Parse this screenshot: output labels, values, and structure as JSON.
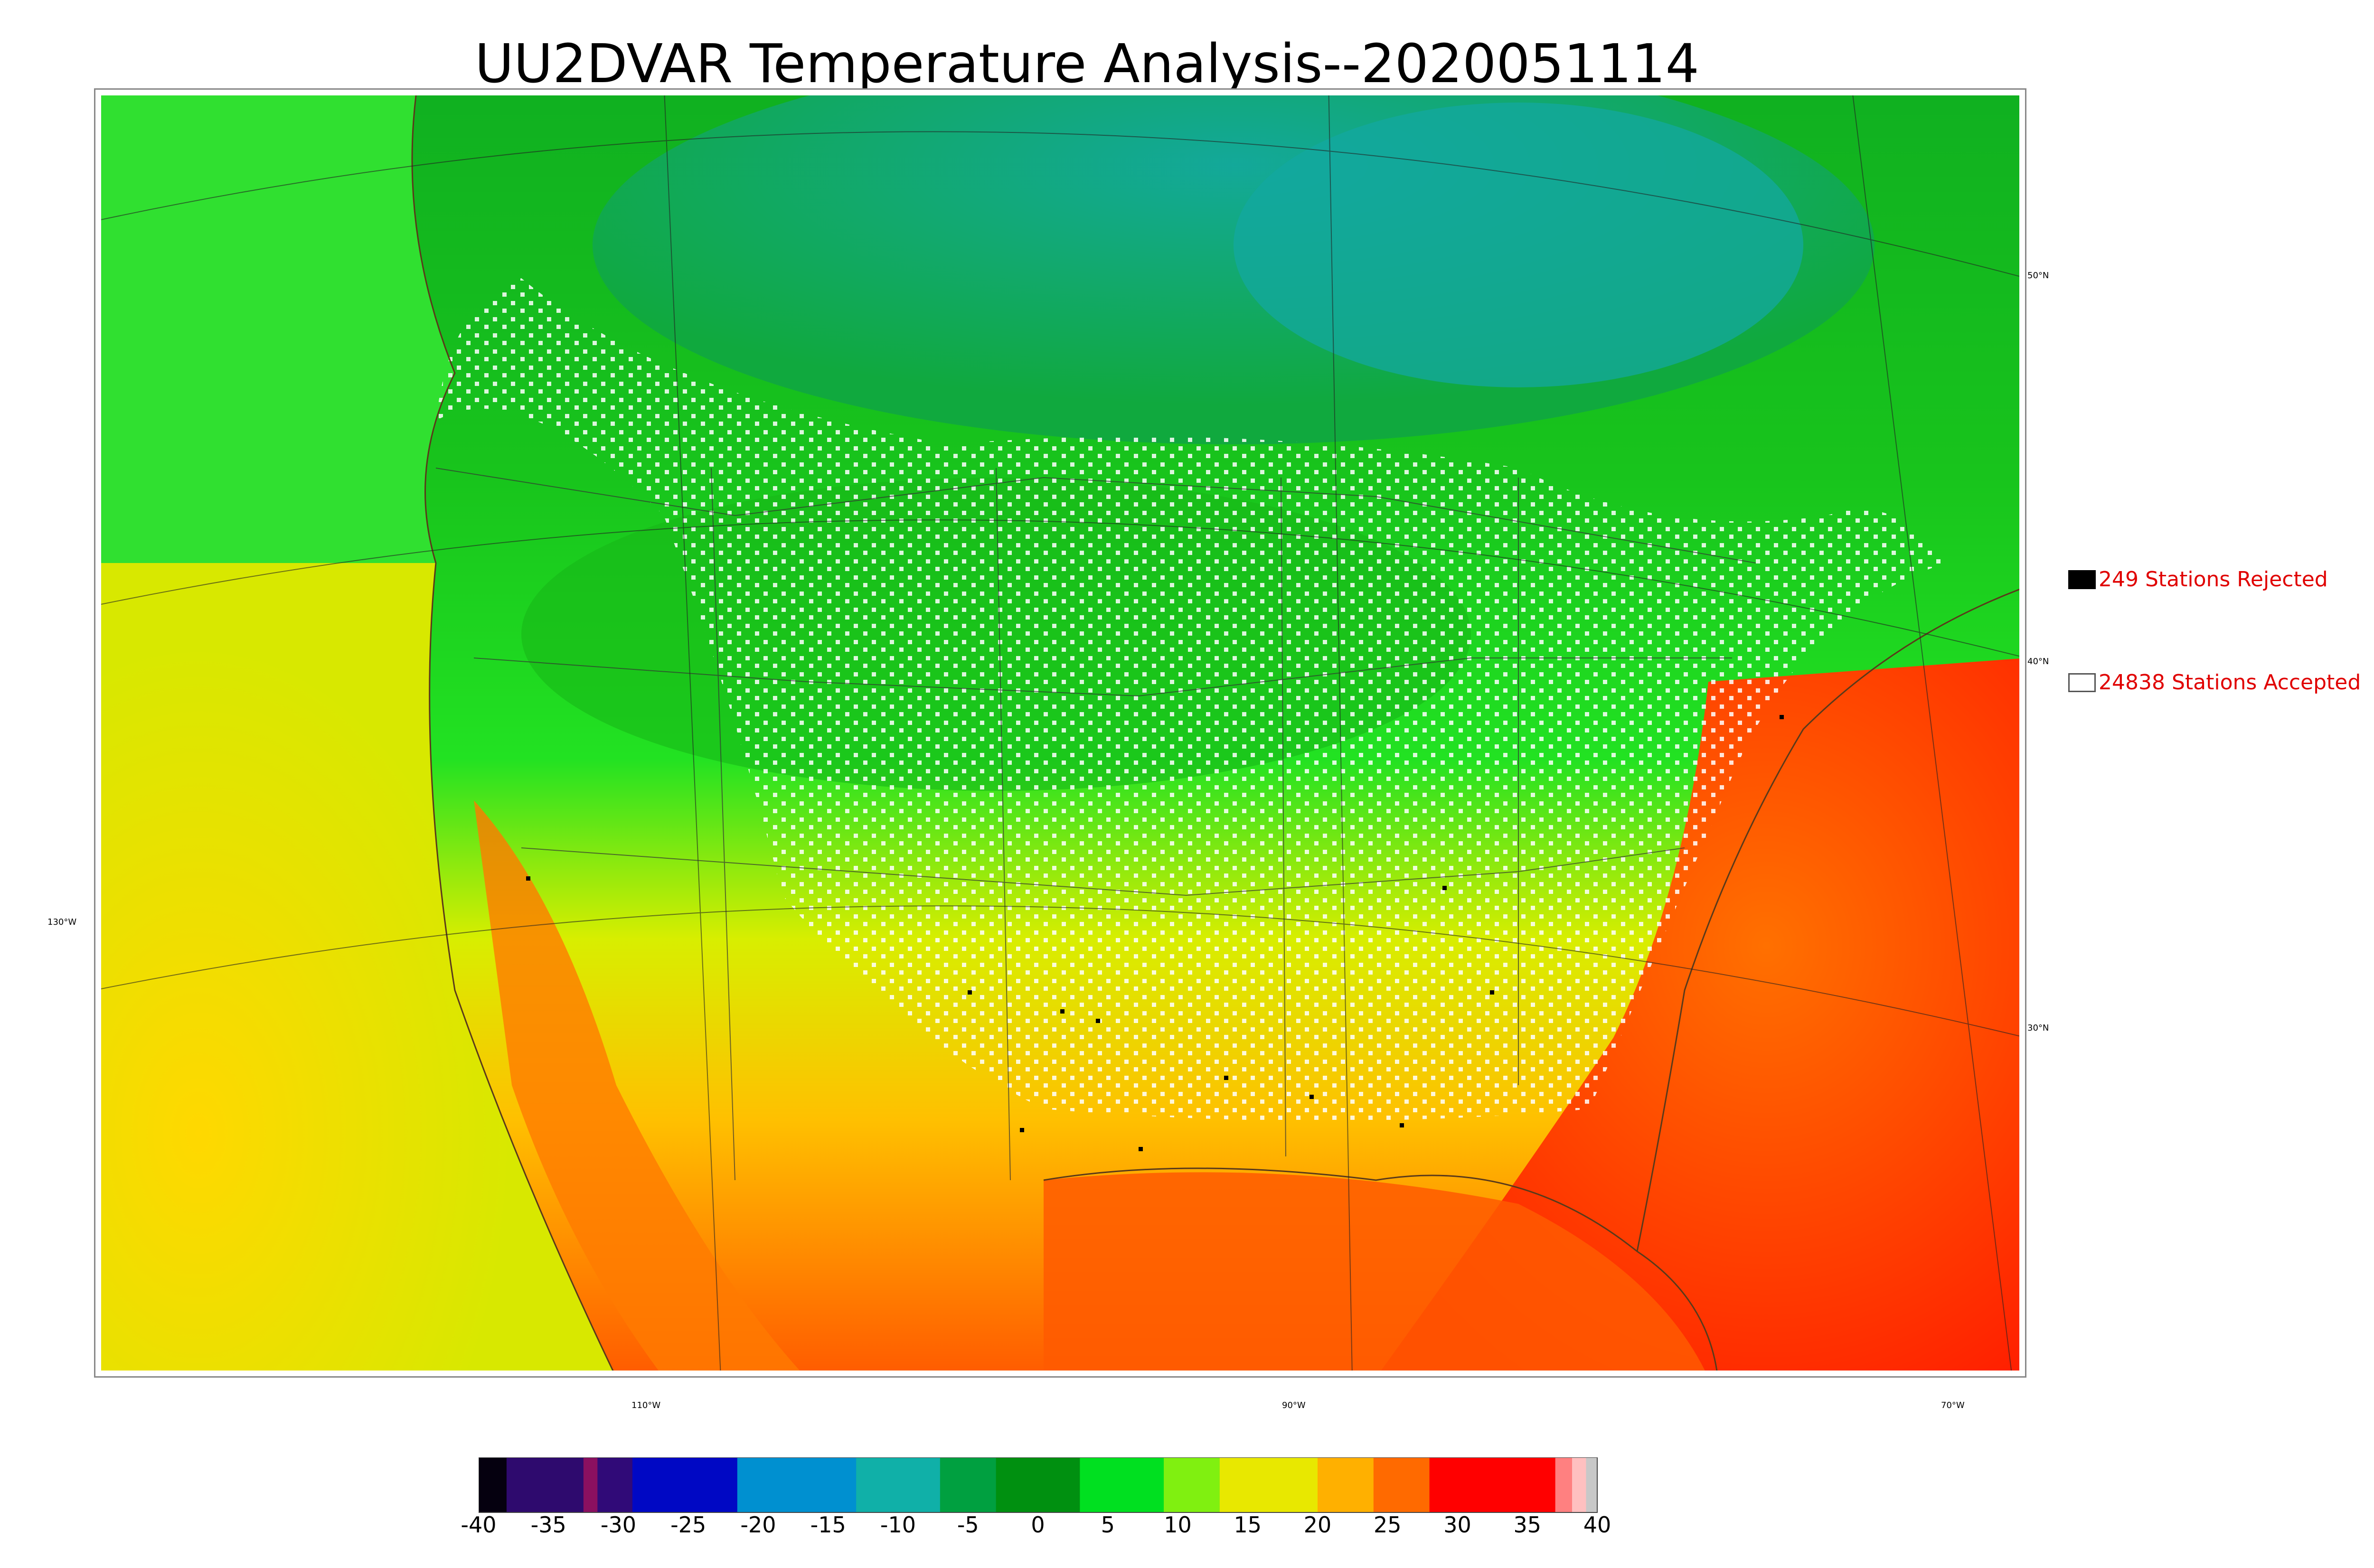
{
  "title": "UU2DVAR Temperature Analysis--2020051114",
  "graticule_labels": {
    "lat_50": "50°N",
    "lat_40": "40°N",
    "lat_30": "30°N",
    "lon_130": "130°W",
    "lon_110": "110°W",
    "lon_90": "90°W",
    "lon_70": "70°W"
  },
  "legend": {
    "rejected": {
      "count": 249,
      "label": "249 Stations Rejected",
      "box_color": "#000000"
    },
    "accepted": {
      "count": 24838,
      "label": "24838 Stations Accepted",
      "box_color": "#ffffff"
    }
  },
  "colorbar": {
    "min": -40,
    "max": 40,
    "tick_labels": [
      "-40",
      "-35",
      "-30",
      "-25",
      "-20",
      "-15",
      "-10",
      "-5",
      "0",
      "5",
      "10",
      "15",
      "20",
      "25",
      "30",
      "35",
      "40"
    ],
    "stops": [
      {
        "from": -40,
        "to": -38,
        "color": "#05000f"
      },
      {
        "from": -38,
        "to": -32.5,
        "color": "#2e0a6e"
      },
      {
        "from": -32.5,
        "to": -31.5,
        "color": "#8a1060"
      },
      {
        "from": -31.5,
        "to": -29,
        "color": "#300a78"
      },
      {
        "from": -29,
        "to": -21.5,
        "color": "#0008c4"
      },
      {
        "from": -21.5,
        "to": -13,
        "color": "#0090d0"
      },
      {
        "from": -13,
        "to": -7,
        "color": "#10b0a8"
      },
      {
        "from": -7,
        "to": -3,
        "color": "#00a040"
      },
      {
        "from": -3,
        "to": 3,
        "color": "#009010"
      },
      {
        "from": 3,
        "to": 9,
        "color": "#00e020"
      },
      {
        "from": 9,
        "to": 13,
        "color": "#80f010"
      },
      {
        "from": 13,
        "to": 20,
        "color": "#e8e800"
      },
      {
        "from": 20,
        "to": 24,
        "color": "#ffb000"
      },
      {
        "from": 24,
        "to": 28,
        "color": "#ff6a00"
      },
      {
        "from": 28,
        "to": 37,
        "color": "#ff0000"
      },
      {
        "from": 37,
        "to": 38.2,
        "color": "#ff8080"
      },
      {
        "from": 38.2,
        "to": 39.2,
        "color": "#ffc0c0"
      },
      {
        "from": 39.2,
        "to": 40,
        "color": "#c8c8c8"
      }
    ]
  },
  "colors": {
    "cold_north": "#13a8a0",
    "cool": "#10a840",
    "mild": "#22e222",
    "warm": "#e8e800",
    "hot": "#ff9000",
    "very_hot": "#ff2000",
    "station_accepted": "#ffffff",
    "station_rejected": "#000000",
    "legend_text": "#e00000"
  }
}
